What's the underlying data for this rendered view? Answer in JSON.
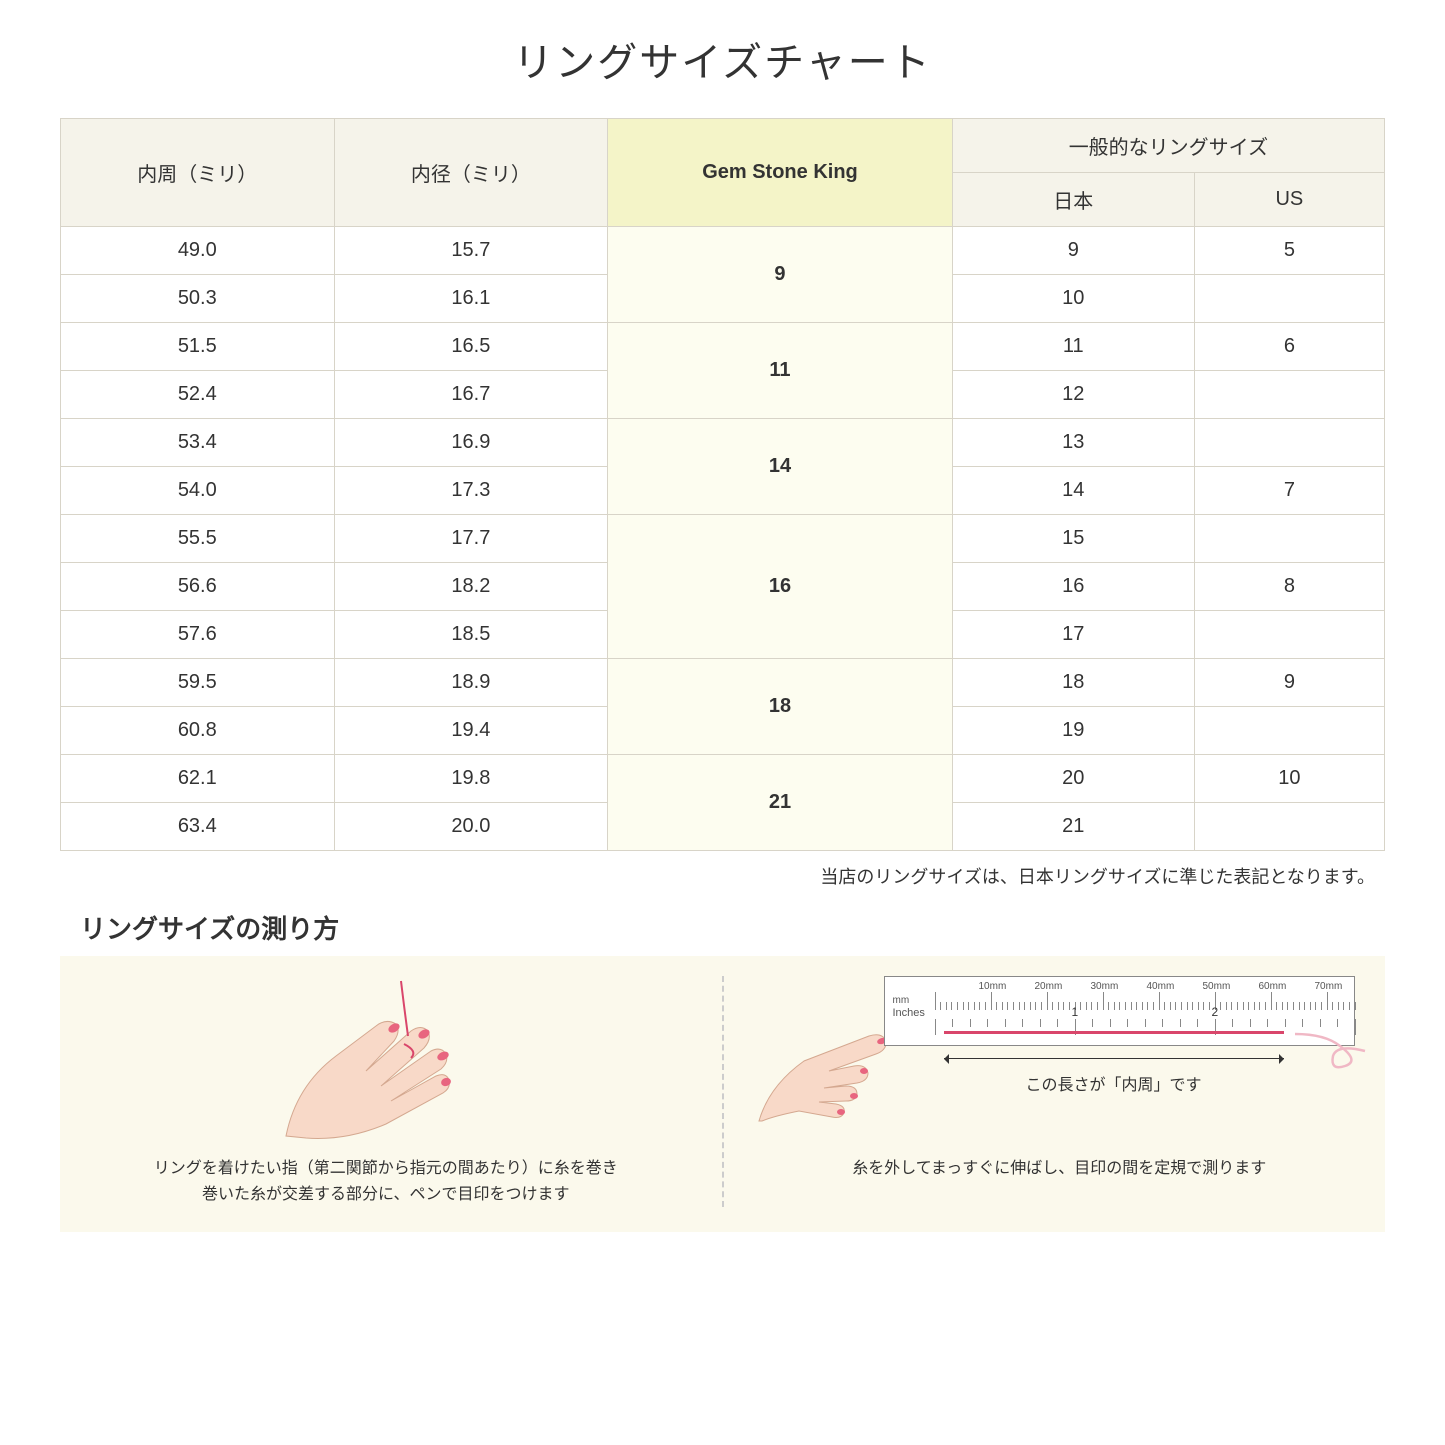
{
  "title": "リングサイズチャート",
  "table": {
    "headers": {
      "col1": "内周（ミリ）",
      "col2": "内径（ミリ）",
      "col3": "Gem Stone King",
      "col4_group": "一般的なリングサイズ",
      "col4a": "日本",
      "col4b": "US"
    },
    "groups": [
      {
        "gsk": "9",
        "rows": [
          {
            "c": "49.0",
            "d": "15.7",
            "jp": "9",
            "us": "5"
          },
          {
            "c": "50.3",
            "d": "16.1",
            "jp": "10",
            "us": ""
          }
        ]
      },
      {
        "gsk": "11",
        "rows": [
          {
            "c": "51.5",
            "d": "16.5",
            "jp": "11",
            "us": "6"
          },
          {
            "c": "52.4",
            "d": "16.7",
            "jp": "12",
            "us": ""
          }
        ]
      },
      {
        "gsk": "14",
        "rows": [
          {
            "c": "53.4",
            "d": "16.9",
            "jp": "13",
            "us": ""
          },
          {
            "c": "54.0",
            "d": "17.3",
            "jp": "14",
            "us": "7"
          }
        ]
      },
      {
        "gsk": "16",
        "rows": [
          {
            "c": "55.5",
            "d": "17.7",
            "jp": "15",
            "us": ""
          },
          {
            "c": "56.6",
            "d": "18.2",
            "jp": "16",
            "us": "8"
          },
          {
            "c": "57.6",
            "d": "18.5",
            "jp": "17",
            "us": ""
          }
        ]
      },
      {
        "gsk": "18",
        "rows": [
          {
            "c": "59.5",
            "d": "18.9",
            "jp": "18",
            "us": "9"
          },
          {
            "c": "60.8",
            "d": "19.4",
            "jp": "19",
            "us": ""
          }
        ]
      },
      {
        "gsk": "21",
        "rows": [
          {
            "c": "62.1",
            "d": "19.8",
            "jp": "20",
            "us": "10"
          },
          {
            "c": "63.4",
            "d": "20.0",
            "jp": "21",
            "us": ""
          }
        ]
      }
    ]
  },
  "note": "当店のリングサイズは、日本リングサイズに準じた表記となります。",
  "howto": {
    "title": "リングサイズの測り方",
    "left_text": "リングを着けたい指（第二関節から指元の間あたり）に糸を巻き\n巻いた糸が交差する部分に、ペンで目印をつけます",
    "right_text": "糸を外してまっすぐに伸ばし、目印の間を定規で測ります",
    "length_label": "この長さが「内周」です",
    "ruler": {
      "mm_label": "mm",
      "inches_label": "Inches",
      "mm_marks": [
        "10mm",
        "20mm",
        "30mm",
        "40mm",
        "50mm",
        "60mm",
        "70mm"
      ],
      "inch_marks": [
        "1",
        "2"
      ]
    }
  },
  "colors": {
    "header_bg": "#f5f3ea",
    "highlight_header_bg": "#f4f4c8",
    "highlight_cell_bg": "#fdfdf0",
    "border": "#d8d4c8",
    "howto_bg": "#fbf9ec",
    "thread": "#d9466b",
    "skin": "#f8d9c8",
    "nail": "#e8657f"
  }
}
